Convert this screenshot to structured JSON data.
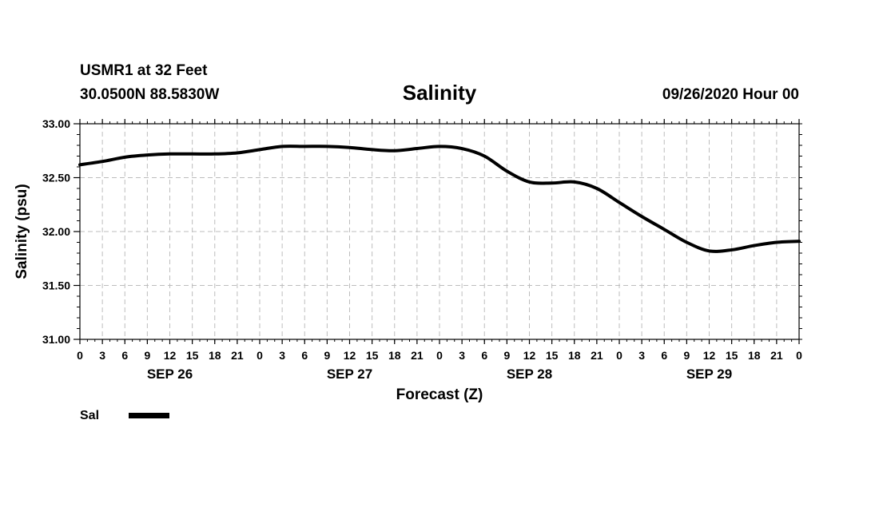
{
  "header": {
    "station": "USMR1 at 32 Feet",
    "coords": "30.0500N 88.5830W",
    "title": "Salinity",
    "issued": "09/26/2020 Hour 00"
  },
  "legend": {
    "label": "Sal",
    "color": "#000000"
  },
  "chart_data": {
    "type": "line",
    "title": "Salinity",
    "xlabel": "Forecast (Z)",
    "ylabel": "Salinity (psu)",
    "ylim": [
      31.0,
      33.0
    ],
    "yticks": [
      "33.00",
      "32.50",
      "32.00",
      "31.50",
      "31.00"
    ],
    "yvalues": [
      33.0,
      32.5,
      32.0,
      31.5,
      31.0
    ],
    "xlim": [
      0,
      96
    ],
    "xunit": "hours since 09/26/2020 00Z",
    "xtick_labels": [
      "0",
      "3",
      "6",
      "9",
      "12",
      "15",
      "18",
      "21",
      "0",
      "3",
      "6",
      "9",
      "12",
      "15",
      "18",
      "21",
      "0",
      "3",
      "6",
      "9",
      "12",
      "15",
      "18",
      "21",
      "0",
      "3",
      "6",
      "9",
      "12",
      "15",
      "18",
      "21",
      "0"
    ],
    "day_labels": [
      {
        "hour": 12,
        "label": "SEP 26"
      },
      {
        "hour": 36,
        "label": "SEP 27"
      },
      {
        "hour": 60,
        "label": "SEP 28"
      },
      {
        "hour": 84,
        "label": "SEP 29"
      }
    ],
    "grid": true,
    "series": [
      {
        "name": "Sal",
        "color": "#000000",
        "x": [
          0,
          3,
          6,
          9,
          12,
          15,
          18,
          21,
          24,
          27,
          30,
          33,
          36,
          39,
          42,
          45,
          48,
          51,
          54,
          57,
          60,
          63,
          66,
          69,
          72,
          75,
          78,
          81,
          84,
          87,
          90,
          93,
          96
        ],
        "values": [
          32.62,
          32.65,
          32.69,
          32.71,
          32.72,
          32.72,
          32.72,
          32.73,
          32.76,
          32.79,
          32.79,
          32.79,
          32.78,
          32.76,
          32.75,
          32.77,
          32.79,
          32.77,
          32.7,
          32.56,
          32.46,
          32.45,
          32.46,
          32.4,
          32.27,
          32.14,
          32.02,
          31.9,
          31.82,
          31.83,
          31.87,
          31.9,
          31.91
        ]
      }
    ]
  }
}
